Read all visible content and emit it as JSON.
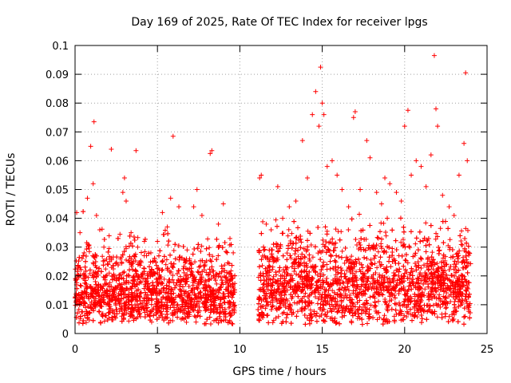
{
  "chart_data": {
    "type": "scatter",
    "title": "Day 169 of 2025, Rate Of TEC Index for receiver lpgs",
    "xlabel": "GPS time / hours",
    "ylabel": "ROTI / TECUs",
    "xlim": [
      0,
      25
    ],
    "ylim": [
      0,
      0.1
    ],
    "x_ticks": [
      0,
      5,
      10,
      15,
      20,
      25
    ],
    "x_tick_labels": [
      "0",
      "5",
      "10",
      "15",
      "20",
      "25"
    ],
    "y_ticks": [
      0,
      0.01,
      0.02,
      0.03,
      0.04,
      0.05,
      0.06,
      0.07,
      0.08,
      0.09,
      0.1
    ],
    "y_tick_labels": [
      "0",
      "0.01",
      "0.02",
      "0.03",
      "0.04",
      "0.05",
      "0.06",
      "0.07",
      "0.08",
      "0.09",
      "0.1"
    ],
    "grid": true,
    "marker": "+",
    "marker_color": "#ff0000",
    "data_gap_hours": [
      9.7,
      11.1
    ],
    "series": [
      {
        "name": "ROTI",
        "x": [
          0.1,
          0.3,
          0.55,
          0.75,
          0.95,
          1.1,
          1.15,
          1.3,
          1.5,
          1.75,
          2.1,
          2.2,
          2.6,
          2.9,
          3.0,
          3.1,
          3.4,
          3.7,
          3.8,
          4.2,
          4.6,
          5.0,
          5.3,
          5.6,
          5.8,
          5.95,
          6.3,
          6.8,
          7.2,
          7.4,
          7.7,
          8.2,
          8.3,
          8.7,
          9.0,
          9.4,
          9.6,
          11.2,
          11.3,
          11.6,
          11.9,
          12.3,
          12.6,
          13.0,
          13.4,
          13.8,
          14.1,
          14.4,
          14.6,
          14.8,
          14.9,
          15.0,
          15.1,
          15.3,
          15.6,
          15.9,
          16.2,
          16.6,
          16.9,
          17.0,
          17.3,
          17.7,
          17.9,
          18.3,
          18.6,
          18.8,
          19.1,
          19.5,
          19.8,
          20.0,
          20.2,
          20.4,
          20.7,
          21.0,
          21.3,
          21.6,
          21.8,
          21.9,
          22.0,
          22.3,
          22.7,
          23.0,
          23.3,
          23.6,
          23.7,
          23.8
        ],
        "y": [
          0.042,
          0.035,
          0.028,
          0.047,
          0.065,
          0.052,
          0.0735,
          0.041,
          0.036,
          0.03,
          0.025,
          0.064,
          0.033,
          0.049,
          0.054,
          0.046,
          0.035,
          0.0635,
          0.03,
          0.027,
          0.028,
          0.032,
          0.042,
          0.037,
          0.047,
          0.0685,
          0.044,
          0.029,
          0.044,
          0.05,
          0.041,
          0.0625,
          0.0635,
          0.038,
          0.045,
          0.033,
          0.028,
          0.054,
          0.055,
          0.038,
          0.036,
          0.051,
          0.04,
          0.044,
          0.046,
          0.067,
          0.054,
          0.076,
          0.084,
          0.072,
          0.0925,
          0.08,
          0.076,
          0.058,
          0.06,
          0.055,
          0.05,
          0.044,
          0.075,
          0.077,
          0.05,
          0.067,
          0.061,
          0.049,
          0.045,
          0.054,
          0.052,
          0.049,
          0.046,
          0.072,
          0.0775,
          0.055,
          0.06,
          0.058,
          0.051,
          0.062,
          0.0965,
          0.078,
          0.072,
          0.048,
          0.044,
          0.041,
          0.055,
          0.066,
          0.0905,
          0.06
        ]
      }
    ]
  }
}
